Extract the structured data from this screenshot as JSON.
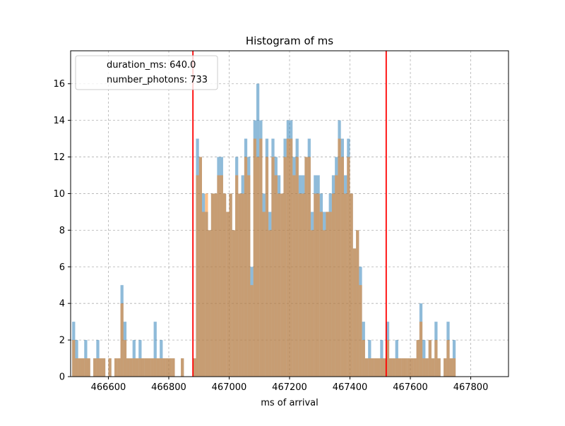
{
  "chart_data": {
    "type": "bar",
    "title": "Histogram of ms",
    "xlabel": "ms of arrival",
    "ylabel": "",
    "xlim": [
      466475,
      467925
    ],
    "ylim": [
      0,
      17.8
    ],
    "x_ticks": [
      466600,
      466800,
      467000,
      467200,
      467400,
      467600,
      467800
    ],
    "y_ticks": [
      0,
      2,
      4,
      6,
      8,
      10,
      12,
      14,
      16
    ],
    "grid": true,
    "legend_placement": "top-left",
    "legend": [
      "duration_ms: 640.0",
      "number_photons: 733"
    ],
    "vertical_lines": [
      466880,
      467520
    ],
    "vertical_line_color": "#ff0000",
    "bin_start": 466480,
    "bin_width": 10,
    "series": [
      {
        "color": "#1f77b4",
        "alpha": 0.5,
        "values": [
          3,
          2,
          1,
          1,
          2,
          1,
          0,
          1,
          2,
          1,
          1,
          0,
          1,
          0,
          1,
          1,
          5,
          3,
          1,
          1,
          2,
          1,
          2,
          1,
          1,
          1,
          1,
          3,
          1,
          2,
          1,
          1,
          1,
          1,
          0,
          0,
          1,
          0,
          0,
          0,
          1,
          13,
          12,
          10,
          9,
          8,
          10,
          10,
          12,
          12,
          10,
          9,
          10,
          8,
          12,
          10,
          11,
          13,
          12,
          6,
          14,
          16,
          14,
          10,
          13,
          9,
          13,
          12,
          11,
          10,
          13,
          14,
          14,
          12,
          13,
          11,
          11,
          12,
          13,
          9,
          11,
          11,
          10,
          9,
          9,
          10,
          11,
          12,
          14,
          13,
          11,
          13,
          10,
          7,
          8,
          6,
          3,
          1,
          2,
          1,
          1,
          1,
          2,
          1,
          3,
          1,
          1,
          2,
          1,
          1,
          1,
          1,
          1,
          1,
          2,
          4,
          2,
          1,
          2,
          1,
          3,
          1,
          0,
          1,
          3,
          1,
          2
        ]
      },
      {
        "color": "#ff7f0e",
        "alpha": 0.5,
        "values": [
          2,
          1,
          1,
          1,
          1,
          1,
          0,
          1,
          1,
          1,
          1,
          0,
          1,
          0,
          1,
          1,
          4,
          2,
          1,
          1,
          1,
          1,
          1,
          1,
          1,
          1,
          1,
          1,
          1,
          1,
          1,
          1,
          1,
          1,
          0,
          0,
          1,
          0,
          0,
          0,
          1,
          11,
          12,
          9,
          10,
          8,
          10,
          10,
          11,
          11,
          10,
          9,
          10,
          8,
          11,
          10,
          10,
          12,
          11,
          5,
          13,
          12,
          13,
          9,
          12,
          8,
          12,
          11,
          10,
          10,
          12,
          13,
          13,
          11,
          12,
          10,
          10,
          12,
          12,
          8,
          10,
          10,
          9,
          8,
          9,
          9,
          10,
          11,
          13,
          12,
          10,
          12,
          10,
          7,
          8,
          5,
          2,
          1,
          1,
          1,
          1,
          1,
          1,
          1,
          2,
          1,
          1,
          1,
          1,
          1,
          1,
          1,
          1,
          1,
          2,
          3,
          1,
          1,
          2,
          1,
          2,
          1,
          0,
          1,
          2,
          1,
          1
        ]
      }
    ]
  }
}
